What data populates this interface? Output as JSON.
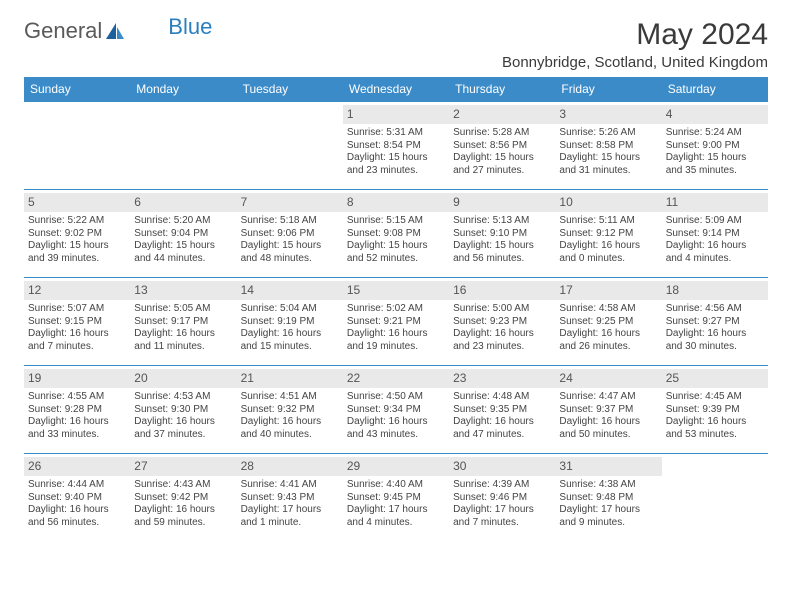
{
  "brand": {
    "part1": "General",
    "part2": "Blue"
  },
  "title": {
    "month_year": "May 2024",
    "location": "Bonnybridge, Scotland, United Kingdom"
  },
  "colors": {
    "header_bg": "#3b8bc9",
    "header_text": "#ffffff",
    "daynum_bg": "#e9e9e9",
    "border": "#3b8bc9",
    "text": "#444444",
    "logo_gray": "#5a5a5a",
    "logo_blue": "#2a7fbf"
  },
  "day_headers": [
    "Sunday",
    "Monday",
    "Tuesday",
    "Wednesday",
    "Thursday",
    "Friday",
    "Saturday"
  ],
  "weeks": [
    [
      {
        "n": "",
        "sr": "",
        "ss": "",
        "dl": ""
      },
      {
        "n": "",
        "sr": "",
        "ss": "",
        "dl": ""
      },
      {
        "n": "",
        "sr": "",
        "ss": "",
        "dl": ""
      },
      {
        "n": "1",
        "sr": "Sunrise: 5:31 AM",
        "ss": "Sunset: 8:54 PM",
        "dl": "Daylight: 15 hours and 23 minutes."
      },
      {
        "n": "2",
        "sr": "Sunrise: 5:28 AM",
        "ss": "Sunset: 8:56 PM",
        "dl": "Daylight: 15 hours and 27 minutes."
      },
      {
        "n": "3",
        "sr": "Sunrise: 5:26 AM",
        "ss": "Sunset: 8:58 PM",
        "dl": "Daylight: 15 hours and 31 minutes."
      },
      {
        "n": "4",
        "sr": "Sunrise: 5:24 AM",
        "ss": "Sunset: 9:00 PM",
        "dl": "Daylight: 15 hours and 35 minutes."
      }
    ],
    [
      {
        "n": "5",
        "sr": "Sunrise: 5:22 AM",
        "ss": "Sunset: 9:02 PM",
        "dl": "Daylight: 15 hours and 39 minutes."
      },
      {
        "n": "6",
        "sr": "Sunrise: 5:20 AM",
        "ss": "Sunset: 9:04 PM",
        "dl": "Daylight: 15 hours and 44 minutes."
      },
      {
        "n": "7",
        "sr": "Sunrise: 5:18 AM",
        "ss": "Sunset: 9:06 PM",
        "dl": "Daylight: 15 hours and 48 minutes."
      },
      {
        "n": "8",
        "sr": "Sunrise: 5:15 AM",
        "ss": "Sunset: 9:08 PM",
        "dl": "Daylight: 15 hours and 52 minutes."
      },
      {
        "n": "9",
        "sr": "Sunrise: 5:13 AM",
        "ss": "Sunset: 9:10 PM",
        "dl": "Daylight: 15 hours and 56 minutes."
      },
      {
        "n": "10",
        "sr": "Sunrise: 5:11 AM",
        "ss": "Sunset: 9:12 PM",
        "dl": "Daylight: 16 hours and 0 minutes."
      },
      {
        "n": "11",
        "sr": "Sunrise: 5:09 AM",
        "ss": "Sunset: 9:14 PM",
        "dl": "Daylight: 16 hours and 4 minutes."
      }
    ],
    [
      {
        "n": "12",
        "sr": "Sunrise: 5:07 AM",
        "ss": "Sunset: 9:15 PM",
        "dl": "Daylight: 16 hours and 7 minutes."
      },
      {
        "n": "13",
        "sr": "Sunrise: 5:05 AM",
        "ss": "Sunset: 9:17 PM",
        "dl": "Daylight: 16 hours and 11 minutes."
      },
      {
        "n": "14",
        "sr": "Sunrise: 5:04 AM",
        "ss": "Sunset: 9:19 PM",
        "dl": "Daylight: 16 hours and 15 minutes."
      },
      {
        "n": "15",
        "sr": "Sunrise: 5:02 AM",
        "ss": "Sunset: 9:21 PM",
        "dl": "Daylight: 16 hours and 19 minutes."
      },
      {
        "n": "16",
        "sr": "Sunrise: 5:00 AM",
        "ss": "Sunset: 9:23 PM",
        "dl": "Daylight: 16 hours and 23 minutes."
      },
      {
        "n": "17",
        "sr": "Sunrise: 4:58 AM",
        "ss": "Sunset: 9:25 PM",
        "dl": "Daylight: 16 hours and 26 minutes."
      },
      {
        "n": "18",
        "sr": "Sunrise: 4:56 AM",
        "ss": "Sunset: 9:27 PM",
        "dl": "Daylight: 16 hours and 30 minutes."
      }
    ],
    [
      {
        "n": "19",
        "sr": "Sunrise: 4:55 AM",
        "ss": "Sunset: 9:28 PM",
        "dl": "Daylight: 16 hours and 33 minutes."
      },
      {
        "n": "20",
        "sr": "Sunrise: 4:53 AM",
        "ss": "Sunset: 9:30 PM",
        "dl": "Daylight: 16 hours and 37 minutes."
      },
      {
        "n": "21",
        "sr": "Sunrise: 4:51 AM",
        "ss": "Sunset: 9:32 PM",
        "dl": "Daylight: 16 hours and 40 minutes."
      },
      {
        "n": "22",
        "sr": "Sunrise: 4:50 AM",
        "ss": "Sunset: 9:34 PM",
        "dl": "Daylight: 16 hours and 43 minutes."
      },
      {
        "n": "23",
        "sr": "Sunrise: 4:48 AM",
        "ss": "Sunset: 9:35 PM",
        "dl": "Daylight: 16 hours and 47 minutes."
      },
      {
        "n": "24",
        "sr": "Sunrise: 4:47 AM",
        "ss": "Sunset: 9:37 PM",
        "dl": "Daylight: 16 hours and 50 minutes."
      },
      {
        "n": "25",
        "sr": "Sunrise: 4:45 AM",
        "ss": "Sunset: 9:39 PM",
        "dl": "Daylight: 16 hours and 53 minutes."
      }
    ],
    [
      {
        "n": "26",
        "sr": "Sunrise: 4:44 AM",
        "ss": "Sunset: 9:40 PM",
        "dl": "Daylight: 16 hours and 56 minutes."
      },
      {
        "n": "27",
        "sr": "Sunrise: 4:43 AM",
        "ss": "Sunset: 9:42 PM",
        "dl": "Daylight: 16 hours and 59 minutes."
      },
      {
        "n": "28",
        "sr": "Sunrise: 4:41 AM",
        "ss": "Sunset: 9:43 PM",
        "dl": "Daylight: 17 hours and 1 minute."
      },
      {
        "n": "29",
        "sr": "Sunrise: 4:40 AM",
        "ss": "Sunset: 9:45 PM",
        "dl": "Daylight: 17 hours and 4 minutes."
      },
      {
        "n": "30",
        "sr": "Sunrise: 4:39 AM",
        "ss": "Sunset: 9:46 PM",
        "dl": "Daylight: 17 hours and 7 minutes."
      },
      {
        "n": "31",
        "sr": "Sunrise: 4:38 AM",
        "ss": "Sunset: 9:48 PM",
        "dl": "Daylight: 17 hours and 9 minutes."
      },
      {
        "n": "",
        "sr": "",
        "ss": "",
        "dl": ""
      }
    ]
  ]
}
